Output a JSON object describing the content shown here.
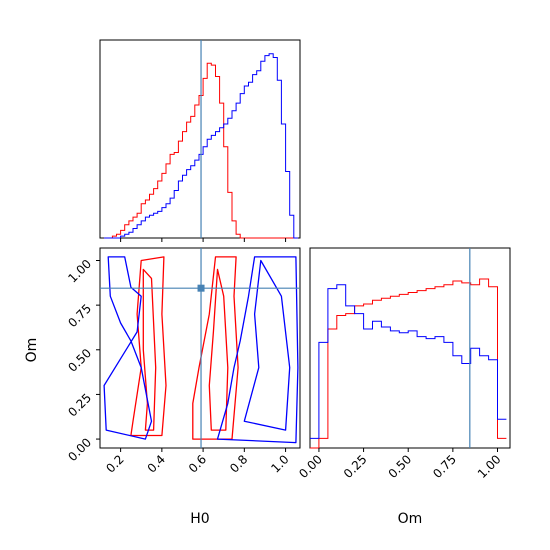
{
  "chart_data": {
    "type": "corner",
    "parameters": [
      "H0",
      "Om"
    ],
    "xlabels": {
      "H0": "H0",
      "Om": "Om"
    },
    "ylabels": {
      "Om": "Om"
    },
    "truth": {
      "H0": 0.59,
      "Om": 0.845
    },
    "axis_ranges": {
      "H0": [
        0.1,
        1.07
      ],
      "Om": [
        -0.05,
        1.07
      ]
    },
    "ticks": {
      "H0": [
        0.2,
        0.4,
        0.6,
        0.8,
        1.0
      ],
      "Om": [
        0.0,
        0.25,
        0.5,
        0.75,
        1.0
      ]
    },
    "tick_labels": {
      "H0": [
        "0.2",
        "0.4",
        "0.6",
        "0.8",
        "1.0"
      ],
      "Om": [
        "0.00",
        "0.25",
        "0.50",
        "0.75",
        "1.00"
      ]
    },
    "colors": {
      "red": "#ff0000",
      "blue": "#0000ff",
      "truth": "#4682b4"
    },
    "hist_H0": {
      "bin_edges": [
        0.12,
        0.14,
        0.16,
        0.18,
        0.2,
        0.22,
        0.24,
        0.26,
        0.28,
        0.3,
        0.32,
        0.34,
        0.36,
        0.38,
        0.4,
        0.42,
        0.44,
        0.46,
        0.48,
        0.5,
        0.52,
        0.54,
        0.56,
        0.58,
        0.6,
        0.62,
        0.64,
        0.66,
        0.68,
        0.7,
        0.72,
        0.74,
        0.76,
        0.78,
        0.8,
        0.82,
        0.84,
        0.86,
        0.88,
        0.9,
        0.92,
        0.94,
        0.96,
        0.98,
        1.0,
        1.02,
        1.04,
        1.06
      ],
      "red": [
        0,
        0,
        0.01,
        0.02,
        0.04,
        0.07,
        0.09,
        0.11,
        0.13,
        0.18,
        0.2,
        0.23,
        0.26,
        0.3,
        0.34,
        0.39,
        0.44,
        0.45,
        0.51,
        0.56,
        0.61,
        0.64,
        0.7,
        0.75,
        0.84,
        0.92,
        0.91,
        0.85,
        0.71,
        0.48,
        0.24,
        0.09,
        0.02,
        0,
        0,
        0,
        0,
        0,
        0,
        0,
        0,
        0,
        0,
        0,
        0,
        0,
        0
      ],
      "blue": [
        0,
        0,
        0,
        0,
        0.01,
        0.02,
        0.03,
        0.05,
        0.07,
        0.09,
        0.11,
        0.12,
        0.13,
        0.14,
        0.16,
        0.18,
        0.21,
        0.25,
        0.3,
        0.33,
        0.36,
        0.38,
        0.41,
        0.44,
        0.48,
        0.52,
        0.54,
        0.56,
        0.58,
        0.6,
        0.63,
        0.67,
        0.71,
        0.76,
        0.8,
        0.82,
        0.86,
        0.88,
        0.93,
        0.96,
        0.97,
        0.95,
        0.83,
        0.6,
        0.35,
        0.12,
        0
      ]
    },
    "hist_Om": {
      "bin_edges": [
        -0.05,
        0.0,
        0.05,
        0.1,
        0.15,
        0.2,
        0.25,
        0.3,
        0.35,
        0.4,
        0.45,
        0.5,
        0.55,
        0.6,
        0.65,
        0.7,
        0.75,
        0.8,
        0.85,
        0.9,
        0.95,
        1.0,
        1.05
      ],
      "red": [
        0,
        0.05,
        0.62,
        0.69,
        0.7,
        0.74,
        0.75,
        0.77,
        0.78,
        0.79,
        0.8,
        0.81,
        0.82,
        0.83,
        0.84,
        0.85,
        0.87,
        0.86,
        0.85,
        0.88,
        0.84,
        0.05
      ],
      "blue": [
        0.05,
        0.55,
        0.83,
        0.85,
        0.74,
        0.7,
        0.62,
        0.66,
        0.63,
        0.61,
        0.6,
        0.61,
        0.58,
        0.57,
        0.58,
        0.55,
        0.48,
        0.44,
        0.52,
        0.48,
        0.46,
        0.15
      ]
    },
    "contours_2d": [
      {
        "color": "red",
        "points": [
          [
            0.25,
            0.02
          ],
          [
            0.4,
            0.02
          ],
          [
            0.42,
            0.3
          ],
          [
            0.4,
            0.7
          ],
          [
            0.41,
            1.02
          ],
          [
            0.3,
            1.0
          ],
          [
            0.28,
            0.7
          ],
          [
            0.3,
            0.4
          ],
          [
            0.26,
            0.1
          ]
        ]
      },
      {
        "color": "red",
        "points": [
          [
            0.32,
            0.05
          ],
          [
            0.36,
            0.05
          ],
          [
            0.37,
            0.4
          ],
          [
            0.35,
            0.9
          ],
          [
            0.31,
            0.95
          ],
          [
            0.31,
            0.5
          ],
          [
            0.33,
            0.2
          ]
        ]
      },
      {
        "color": "red",
        "points": [
          [
            0.55,
            0.0
          ],
          [
            0.74,
            0.0
          ],
          [
            0.77,
            0.4
          ],
          [
            0.75,
            0.8
          ],
          [
            0.76,
            1.02
          ],
          [
            0.66,
            1.02
          ],
          [
            0.63,
            0.7
          ],
          [
            0.58,
            0.4
          ],
          [
            0.55,
            0.2
          ]
        ]
      },
      {
        "color": "red",
        "points": [
          [
            0.64,
            0.05
          ],
          [
            0.71,
            0.05
          ],
          [
            0.72,
            0.4
          ],
          [
            0.7,
            0.8
          ],
          [
            0.67,
            0.95
          ],
          [
            0.65,
            0.6
          ],
          [
            0.63,
            0.3
          ]
        ]
      },
      {
        "color": "blue",
        "points": [
          [
            0.13,
            0.05
          ],
          [
            0.32,
            0.0
          ],
          [
            0.35,
            0.1
          ],
          [
            0.3,
            0.4
          ],
          [
            0.25,
            0.55
          ],
          [
            0.2,
            0.65
          ],
          [
            0.15,
            0.8
          ],
          [
            0.14,
            1.02
          ],
          [
            0.22,
            1.02
          ],
          [
            0.25,
            0.85
          ],
          [
            0.3,
            0.8
          ],
          [
            0.28,
            0.6
          ],
          [
            0.2,
            0.45
          ],
          [
            0.12,
            0.3
          ]
        ]
      },
      {
        "color": "blue",
        "points": [
          [
            0.67,
            0.0
          ],
          [
            1.05,
            -0.02
          ],
          [
            1.06,
            0.4
          ],
          [
            1.05,
            1.02
          ],
          [
            0.85,
            1.02
          ],
          [
            0.82,
            0.8
          ],
          [
            0.78,
            0.55
          ],
          [
            0.75,
            0.4
          ],
          [
            0.72,
            0.2
          ]
        ]
      },
      {
        "color": "blue",
        "points": [
          [
            0.8,
            0.1
          ],
          [
            1.0,
            0.05
          ],
          [
            1.02,
            0.4
          ],
          [
            0.98,
            0.8
          ],
          [
            0.88,
            1.0
          ],
          [
            0.85,
            0.7
          ],
          [
            0.87,
            0.4
          ]
        ]
      }
    ]
  }
}
